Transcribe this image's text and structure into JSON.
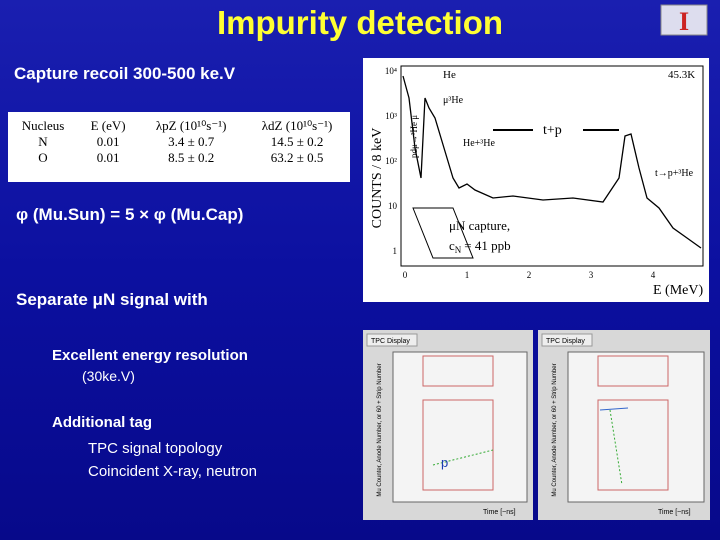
{
  "title": "Impurity detection",
  "left": {
    "capture": "Capture recoil 300-500 ke.V",
    "phi": "φ (Mu.Sun) = 5 × φ (Mu.Cap)",
    "separate": "Separate μN signal with",
    "energy": "Excellent energy resolution",
    "resolution": "(30ke.V)",
    "tag": "Additional tag",
    "topology": "TPC signal topology",
    "coincident": "Coincident X-ray, neutron"
  },
  "table": {
    "header": [
      "Nucleus",
      "E (eV)",
      "λpZ (10¹⁰s⁻¹)",
      "λdZ (10¹⁰s⁻¹)"
    ],
    "rows": [
      [
        "N",
        "0.01",
        "3.4 ± 0.7",
        "14.5 ± 0.2"
      ],
      [
        "O",
        "0.01",
        "8.5 ± 0.2",
        "63.2 ± 0.5"
      ]
    ]
  },
  "spectrum": {
    "ylabel": "COUNTS / 8 keV",
    "xlabel": "E (MeV)",
    "total": "45.3K",
    "yticks": [
      "10⁴",
      "10³",
      "10²",
      "10",
      "1"
    ],
    "xticks": [
      "0",
      "1",
      "2",
      "3",
      "4"
    ],
    "labels": [
      "He",
      "μ³He",
      "pdμ→³He μ",
      "He+³He",
      "t+p",
      "t→p+³He"
    ],
    "capture": "μN capture,",
    "c": "c",
    "sub": "N",
    "ppb": "= 41 ppb"
  },
  "tpc": {
    "title": "TPC Display",
    "ylabel": "Mu Counter, Anode Number, or 60 + Strip Number",
    "xlabel": "Time [~ns]",
    "p": "p"
  }
}
